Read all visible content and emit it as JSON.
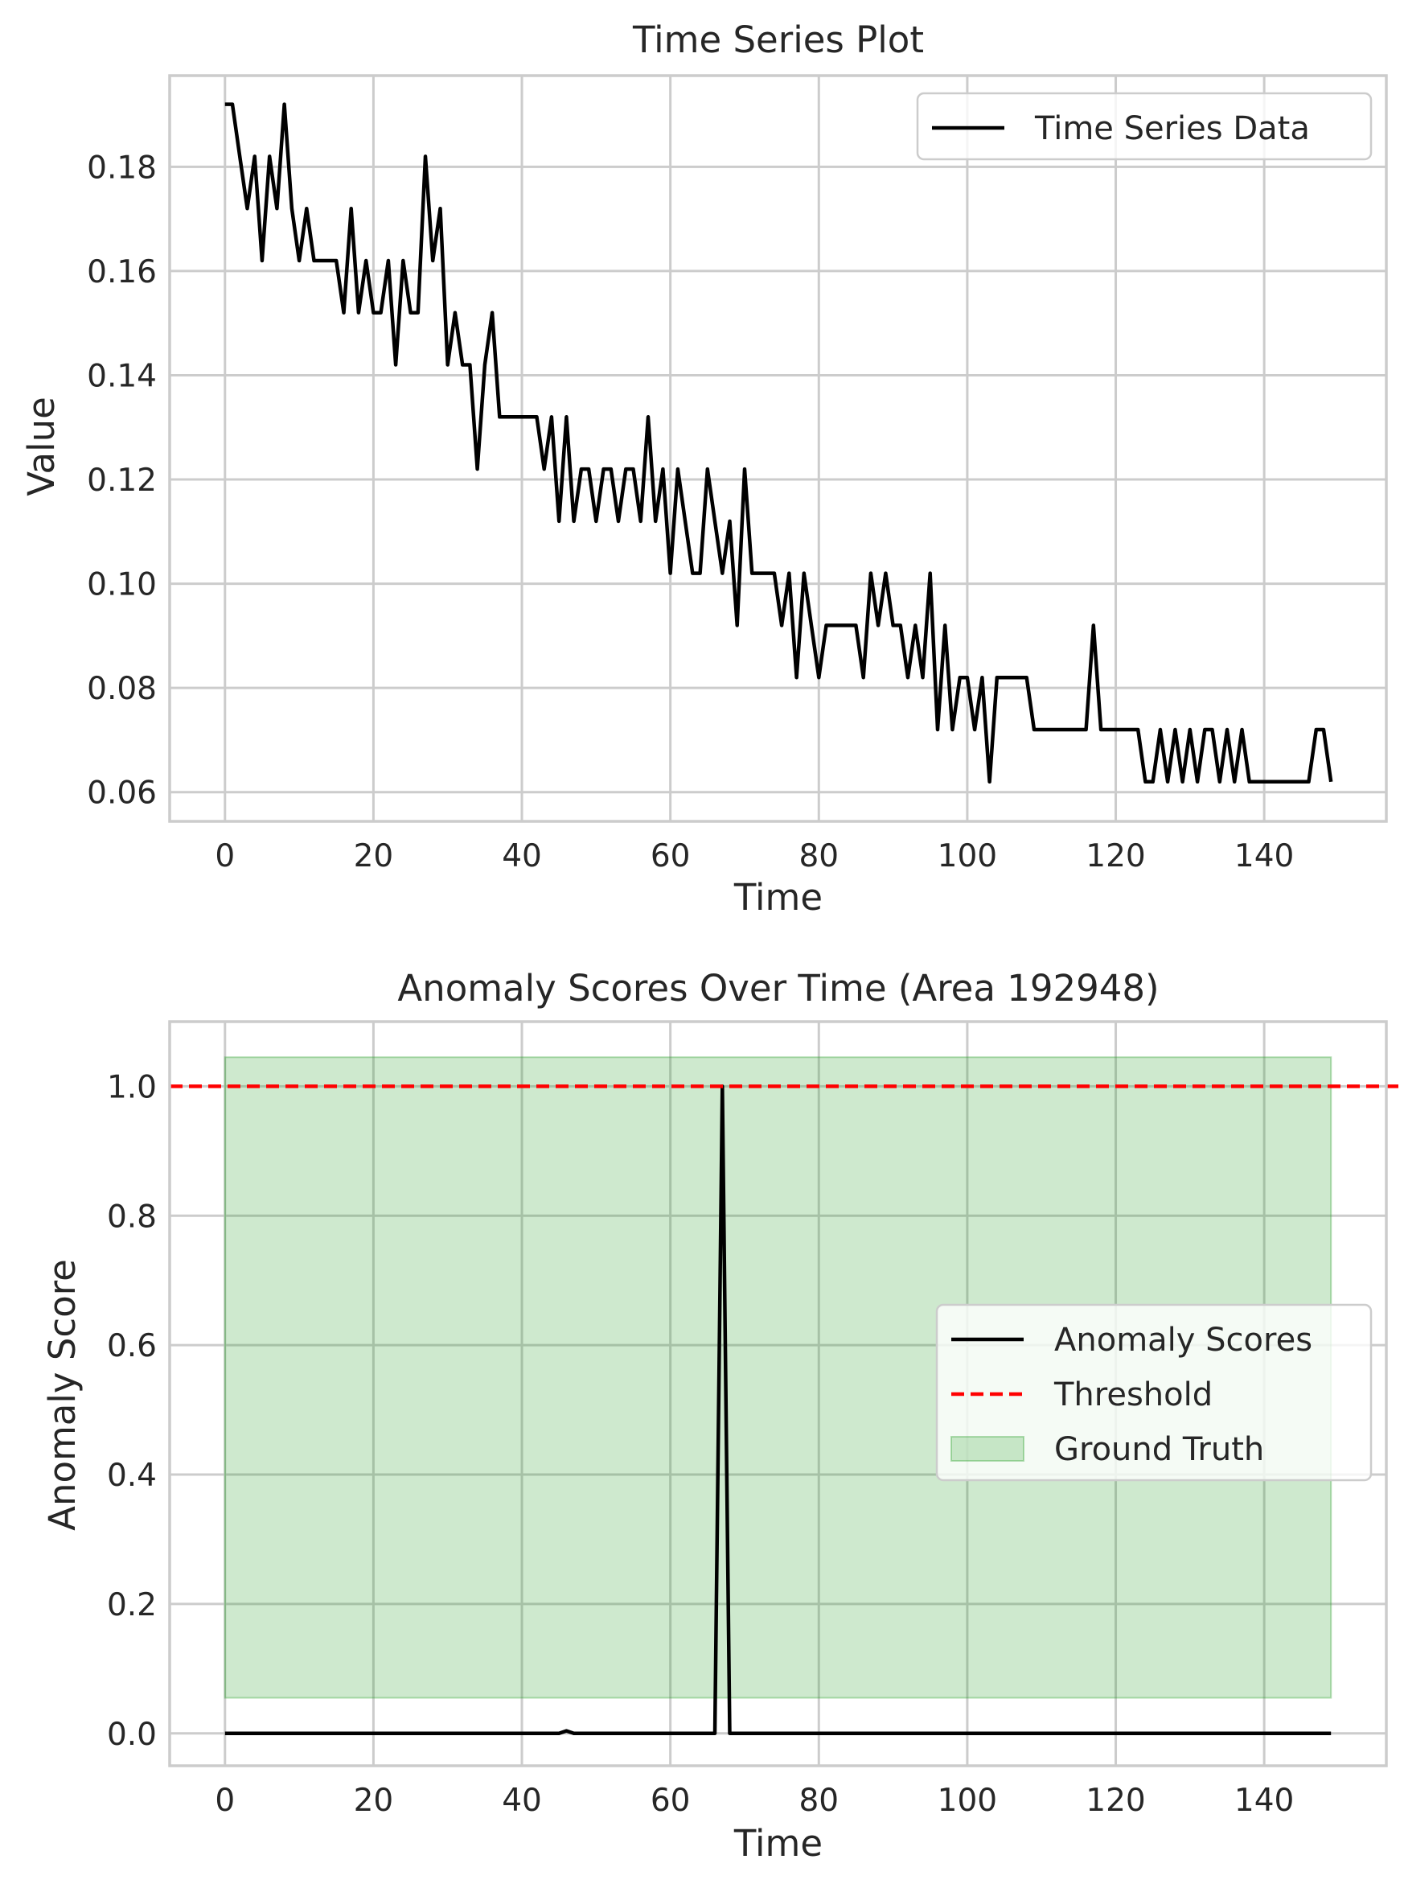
{
  "chart_data": [
    {
      "type": "line",
      "title": "Time Series Plot",
      "xlabel": "Time",
      "ylabel": "Value",
      "xlim": [
        -7.45,
        156.45
      ],
      "ylim": [
        0.0544,
        0.1975
      ],
      "xticks": [
        0,
        20,
        40,
        60,
        80,
        100,
        120,
        140
      ],
      "xtick_labels": [
        "0",
        "20",
        "40",
        "60",
        "80",
        "100",
        "120",
        "140"
      ],
      "yticks": [
        0.06,
        0.08,
        0.1,
        0.12,
        0.14,
        0.16,
        0.18
      ],
      "ytick_labels": [
        "0.06",
        "0.08",
        "0.10",
        "0.12",
        "0.14",
        "0.16",
        "0.18"
      ],
      "grid": true,
      "legend_position": "upper-right",
      "series": [
        {
          "name": "Time Series Data",
          "color": "#000000",
          "style": "solid",
          "x_start": 0,
          "x_step": 1,
          "values": [
            0.192,
            0.192,
            0.182,
            0.172,
            0.182,
            0.162,
            0.182,
            0.172,
            0.192,
            0.172,
            0.162,
            0.172,
            0.162,
            0.162,
            0.162,
            0.162,
            0.152,
            0.172,
            0.152,
            0.162,
            0.152,
            0.152,
            0.162,
            0.142,
            0.162,
            0.152,
            0.152,
            0.182,
            0.162,
            0.172,
            0.142,
            0.152,
            0.142,
            0.142,
            0.122,
            0.142,
            0.152,
            0.132,
            0.132,
            0.132,
            0.132,
            0.132,
            0.132,
            0.122,
            0.132,
            0.112,
            0.132,
            0.112,
            0.122,
            0.122,
            0.112,
            0.122,
            0.122,
            0.112,
            0.122,
            0.122,
            0.112,
            0.132,
            0.112,
            0.122,
            0.102,
            0.122,
            0.112,
            0.102,
            0.102,
            0.122,
            0.112,
            0.102,
            0.112,
            0.092,
            0.122,
            0.102,
            0.102,
            0.102,
            0.102,
            0.092,
            0.102,
            0.082,
            0.102,
            0.092,
            0.082,
            0.092,
            0.092,
            0.092,
            0.092,
            0.092,
            0.082,
            0.102,
            0.092,
            0.102,
            0.092,
            0.092,
            0.082,
            0.092,
            0.082,
            0.102,
            0.072,
            0.092,
            0.072,
            0.082,
            0.082,
            0.072,
            0.082,
            0.062,
            0.082,
            0.082,
            0.082,
            0.082,
            0.082,
            0.072,
            0.072,
            0.072,
            0.072,
            0.072,
            0.072,
            0.072,
            0.072,
            0.092,
            0.072,
            0.072,
            0.072,
            0.072,
            0.072,
            0.072,
            0.062,
            0.062,
            0.072,
            0.062,
            0.072,
            0.062,
            0.072,
            0.062,
            0.072,
            0.072,
            0.062,
            0.072,
            0.062,
            0.072,
            0.062,
            0.062,
            0.062,
            0.062,
            0.062,
            0.062,
            0.062,
            0.062,
            0.062,
            0.072,
            0.072,
            0.062
          ]
        }
      ]
    },
    {
      "type": "line",
      "title": "Anomaly Scores Over Time (Area 192948)",
      "xlabel": "Time",
      "ylabel": "Anomaly Score",
      "xlim": [
        -7.45,
        156.45
      ],
      "ylim": [
        -0.05,
        1.1
      ],
      "xticks": [
        0,
        20,
        40,
        60,
        80,
        100,
        120,
        140
      ],
      "xtick_labels": [
        "0",
        "20",
        "40",
        "60",
        "80",
        "100",
        "120",
        "140"
      ],
      "yticks": [
        0.0,
        0.2,
        0.4,
        0.6,
        0.8,
        1.0
      ],
      "ytick_labels": [
        "0.0",
        "0.2",
        "0.4",
        "0.6",
        "0.8",
        "1.0"
      ],
      "grid": true,
      "legend_position": "center-right",
      "series": [
        {
          "name": "Anomaly Scores",
          "color": "#000000",
          "style": "solid",
          "x": [
            0,
            45,
            46,
            47,
            66,
            67,
            68,
            149
          ],
          "y": [
            0,
            0,
            0.004,
            0,
            0,
            1.0,
            0,
            0
          ]
        },
        {
          "name": "Threshold",
          "color": "#ff0000",
          "style": "dashed",
          "y_constant": 1.0
        }
      ],
      "shaded_regions": [
        {
          "name": "Ground Truth",
          "color": "#2ca02c",
          "opacity": 0.23,
          "x_range": [
            0,
            149
          ],
          "y_range": [
            0.055,
            1.045
          ]
        }
      ]
    }
  ]
}
